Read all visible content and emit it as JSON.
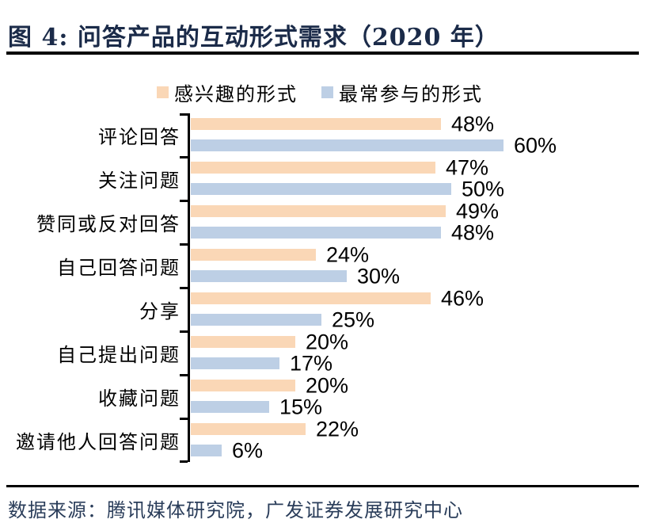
{
  "figure": {
    "title": "图 4:  问答产品的互动形式需求（2020 年）",
    "source": "数据来源：腾讯媒体研究院，广发证券发展研究中心"
  },
  "colors": {
    "title_text": "#1B2B49",
    "footer_text": "#2A3D5A",
    "rule": "#000000",
    "value_label": "#000000",
    "series_interested": "#FAD7B6",
    "series_participated": "#BDCFE5"
  },
  "chart_data": {
    "type": "bar",
    "orientation": "horizontal",
    "title": "问答产品的互动形式需求（2020 年）",
    "categories": [
      "评论回答",
      "关注问题",
      "赞同或反对回答",
      "自己回答问题",
      "分享",
      "自己提出问题",
      "收藏问题",
      "邀请他人回答问题"
    ],
    "series": [
      {
        "name": "感兴趣的形式",
        "color": "#FAD7B6",
        "values": [
          48,
          47,
          49,
          24,
          46,
          20,
          20,
          22
        ]
      },
      {
        "name": "最常参与的形式",
        "color": "#BDCFE5",
        "values": [
          60,
          50,
          48,
          30,
          25,
          17,
          15,
          6
        ]
      }
    ],
    "value_suffix": "%",
    "value_labels": true,
    "xlim": [
      0,
      67
    ],
    "grid": false,
    "legend_position": "top"
  }
}
